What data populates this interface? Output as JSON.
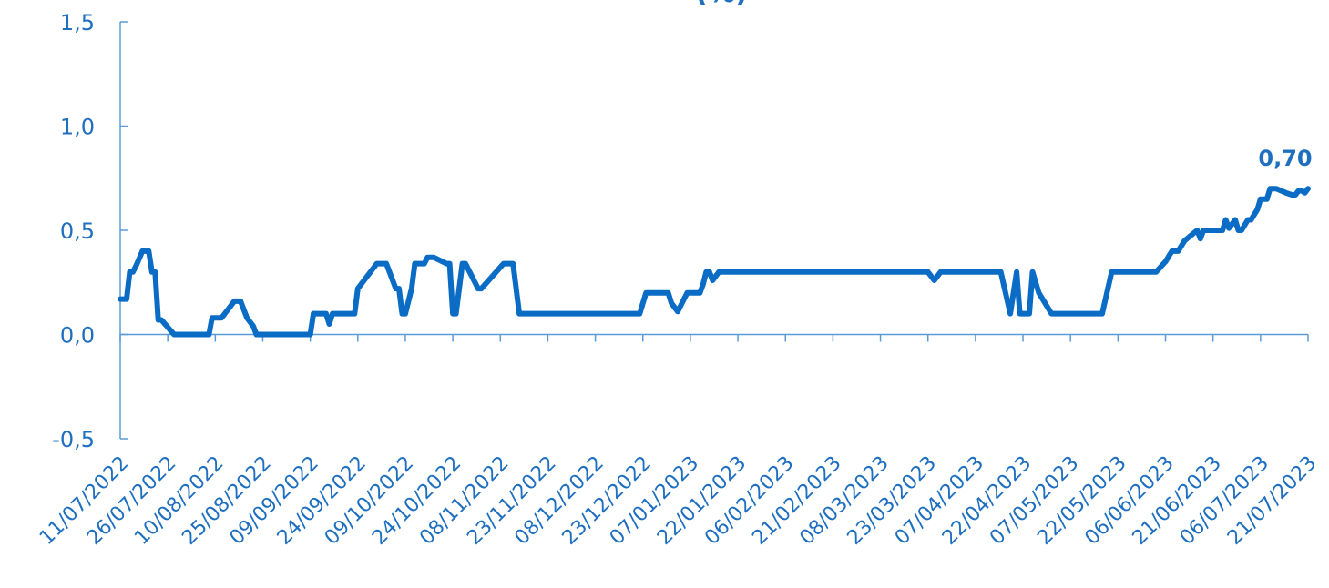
{
  "chart_data": {
    "type": "line",
    "title": "(%)",
    "xlabel": "",
    "ylabel": "",
    "ylim": [
      -0.5,
      1.5
    ],
    "yticks": [
      -0.5,
      0.0,
      0.5,
      1.0,
      1.5
    ],
    "ytick_labels": [
      "-0,5",
      "0,0",
      "0,5",
      "1,0",
      "1,5"
    ],
    "grid": false,
    "legend": "none",
    "x_ticks": [
      "11/07/2022",
      "26/07/2022",
      "10/08/2022",
      "25/08/2022",
      "09/09/2022",
      "24/09/2022",
      "09/10/2022",
      "24/10/2022",
      "08/11/2022",
      "23/11/2022",
      "08/12/2022",
      "23/12/2022",
      "07/01/2023",
      "22/01/2023",
      "06/02/2023",
      "21/02/2023",
      "08/03/2023",
      "23/03/2023",
      "07/04/2023",
      "22/04/2023",
      "07/05/2023",
      "22/05/2023",
      "06/06/2023",
      "21/06/2023",
      "06/07/2023",
      "21/07/2023"
    ],
    "last_value_label": "0,70",
    "colors": {
      "line": "#0a6cc4",
      "axis": "#5b9bd5",
      "text": "#1f6fc0"
    },
    "series": [
      {
        "x": [
          "11/07/2022",
          "13/07/2022",
          "14/07/2022",
          "15/07/2022",
          "16/07/2022",
          "18/07/2022",
          "20/07/2022",
          "21/07/2022",
          "22/07/2022",
          "23/07/2022",
          "24/07/2022",
          "28/07/2022",
          "31/07/2022",
          "08/08/2022",
          "09/08/2022",
          "12/08/2022",
          "16/08/2022",
          "18/08/2022",
          "20/08/2022",
          "22/08/2022",
          "23/08/2022",
          "24/08/2022",
          "27/08/2022",
          "08/09/2022",
          "09/09/2022",
          "10/09/2022",
          "12/09/2022",
          "14/09/2022",
          "15/09/2022",
          "16/09/2022",
          "22/09/2022",
          "23/09/2022",
          "24/09/2022",
          "30/09/2022",
          "03/10/2022",
          "06/10/2022",
          "07/10/2022",
          "08/10/2022",
          "09/10/2022",
          "11/10/2022",
          "12/10/2022",
          "15/10/2022",
          "16/10/2022",
          "18/10/2022",
          "22/10/2022",
          "23/10/2022",
          "24/10/2022",
          "25/10/2022",
          "27/10/2022",
          "28/10/2022",
          "01/11/2022",
          "02/11/2022",
          "09/11/2022",
          "12/11/2022",
          "14/11/2022",
          "22/12/2022",
          "24/12/2022",
          "25/12/2022",
          "31/12/2022",
          "01/01/2023",
          "03/01/2023",
          "06/01/2023",
          "10/01/2023",
          "11/01/2023",
          "12/01/2023",
          "13/01/2023",
          "14/01/2023",
          "16/01/2023",
          "20/01/2023",
          "23/03/2023",
          "25/03/2023",
          "27/03/2023",
          "15/04/2023",
          "18/04/2023",
          "20/04/2023",
          "21/04/2023",
          "23/04/2023",
          "24/04/2023",
          "25/04/2023",
          "27/04/2023",
          "01/05/2023",
          "17/05/2023",
          "20/05/2023",
          "03/06/2023",
          "06/06/2023",
          "08/06/2023",
          "10/06/2023",
          "12/06/2023",
          "16/06/2023",
          "17/06/2023",
          "18/06/2023",
          "19/06/2023",
          "20/06/2023",
          "24/06/2023",
          "25/06/2023",
          "26/06/2023",
          "28/06/2023",
          "29/06/2023",
          "30/06/2023",
          "02/07/2023",
          "03/07/2023",
          "05/07/2023",
          "06/07/2023",
          "07/07/2023",
          "08/07/2023",
          "09/07/2023",
          "11/07/2023",
          "14/07/2023",
          "16/07/2023",
          "17/07/2023",
          "18/07/2023",
          "19/07/2023",
          "20/07/2023",
          "21/07/2023"
        ],
        "y": [
          0.17,
          0.17,
          0.3,
          0.3,
          0.33,
          0.4,
          0.4,
          0.3,
          0.3,
          0.07,
          0.07,
          0.0,
          0.0,
          0.0,
          0.08,
          0.08,
          0.16,
          0.16,
          0.08,
          0.04,
          0.0,
          0.0,
          0.0,
          0.0,
          0.0,
          0.1,
          0.1,
          0.1,
          0.05,
          0.1,
          0.1,
          0.1,
          0.22,
          0.34,
          0.34,
          0.22,
          0.22,
          0.1,
          0.1,
          0.22,
          0.34,
          0.34,
          0.37,
          0.37,
          0.34,
          0.34,
          0.1,
          0.1,
          0.34,
          0.34,
          0.22,
          0.22,
          0.34,
          0.34,
          0.1,
          0.1,
          0.2,
          0.2,
          0.2,
          0.15,
          0.11,
          0.2,
          0.2,
          0.24,
          0.3,
          0.3,
          0.26,
          0.3,
          0.3,
          0.3,
          0.26,
          0.3,
          0.3,
          0.1,
          0.3,
          0.1,
          0.1,
          0.1,
          0.3,
          0.2,
          0.1,
          0.1,
          0.3,
          0.3,
          0.35,
          0.4,
          0.4,
          0.45,
          0.5,
          0.46,
          0.5,
          0.5,
          0.5,
          0.5,
          0.55,
          0.51,
          0.55,
          0.5,
          0.5,
          0.55,
          0.55,
          0.6,
          0.65,
          0.65,
          0.65,
          0.7,
          0.7,
          0.68,
          0.67,
          0.67,
          0.69,
          0.69,
          0.68,
          0.7
        ]
      }
    ]
  }
}
